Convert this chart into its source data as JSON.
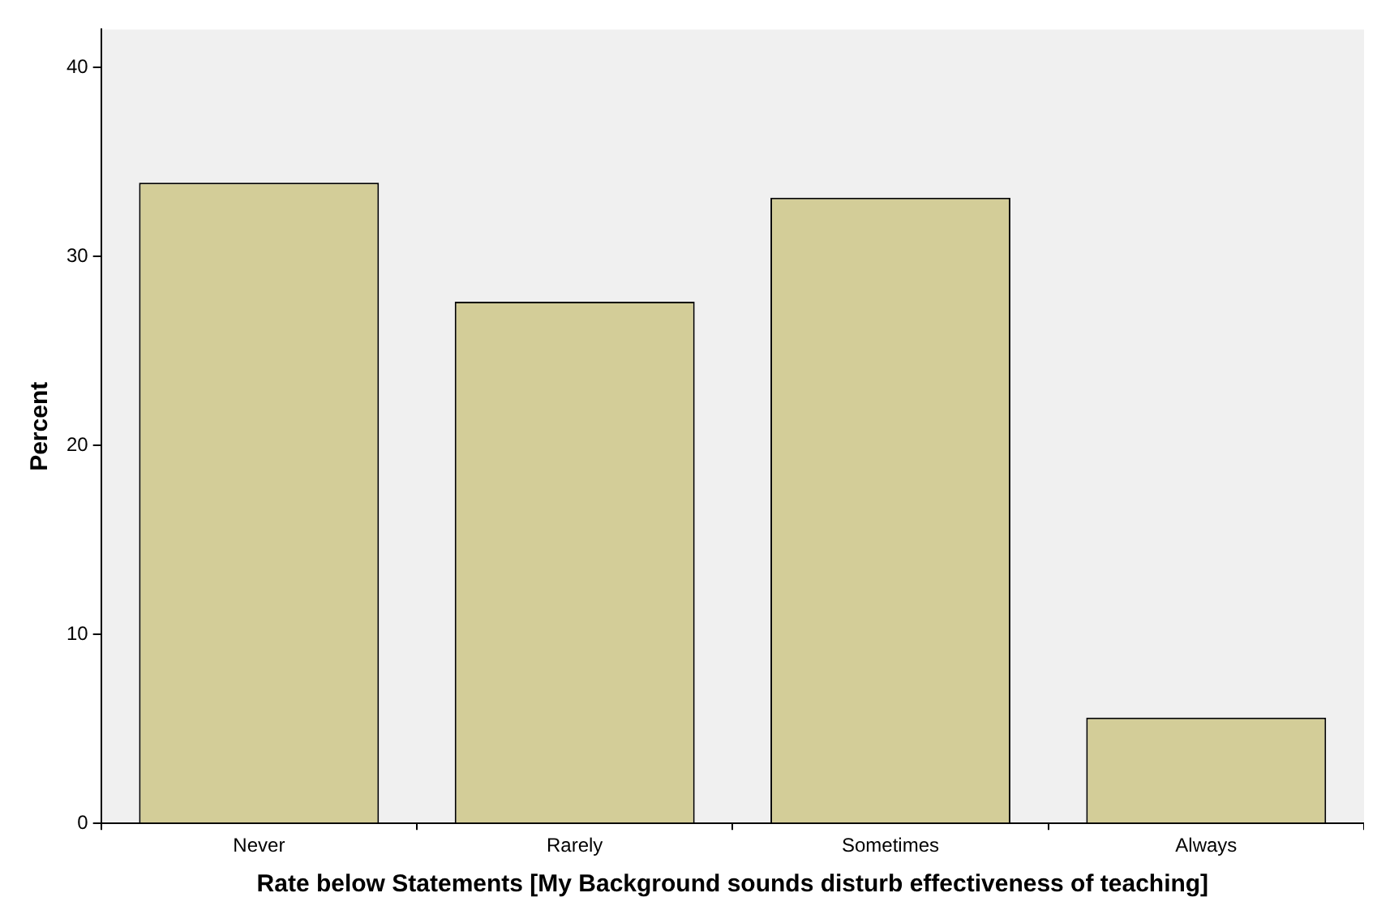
{
  "chart_data": {
    "type": "bar",
    "xlabel": "Rate below Statements [My Background sounds disturb effectiveness of teaching]",
    "ylabel": "Percent",
    "categories": [
      "Never",
      "Rarely",
      "Sometimes",
      "Always"
    ],
    "values": [
      33.9,
      27.6,
      33.1,
      5.6
    ],
    "color": "#d3cd98",
    "ylim": [
      0,
      42
    ],
    "yticks": [
      0,
      10,
      20,
      30,
      40
    ],
    "grid": false,
    "legend": false
  }
}
